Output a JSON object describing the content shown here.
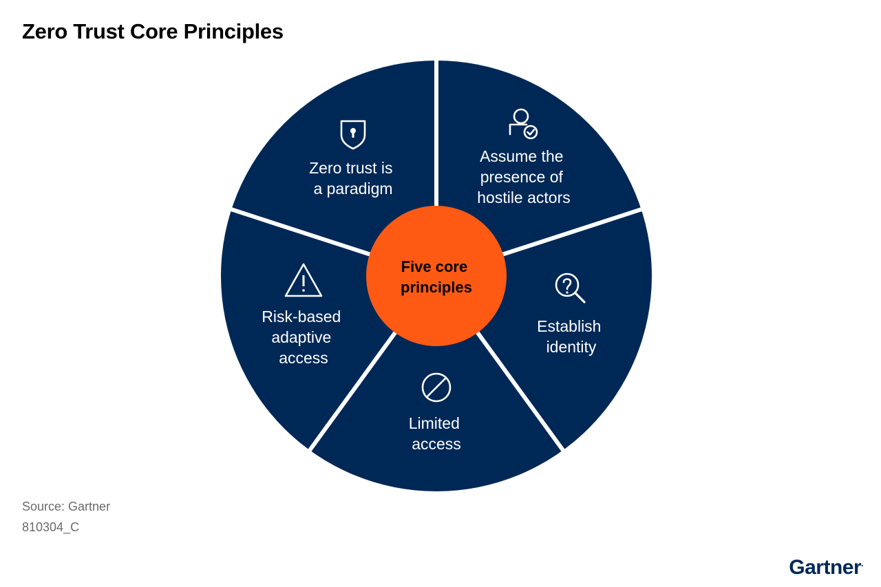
{
  "title": "Zero Trust Core Principles",
  "center": {
    "lines": [
      "Five core",
      "principles"
    ]
  },
  "segments": [
    {
      "icon": "shield-lock-icon",
      "lines": [
        "Zero trust is",
        "a paradigm"
      ]
    },
    {
      "icon": "user-check-icon",
      "lines": [
        "Assume the",
        "presence of",
        "hostile actors"
      ]
    },
    {
      "icon": "search-question-icon",
      "lines": [
        "Establish",
        "identity"
      ]
    },
    {
      "icon": "prohibited-icon",
      "lines": [
        "Limited",
        "access"
      ]
    },
    {
      "icon": "warning-icon",
      "lines": [
        "Risk-based",
        "adaptive",
        "access"
      ]
    }
  ],
  "colors": {
    "segment": "#002856",
    "center": "#ff5a14",
    "divider": "#ffffff"
  },
  "source": "Source: Gartner",
  "code": "810304_C",
  "logo": "Gartner"
}
